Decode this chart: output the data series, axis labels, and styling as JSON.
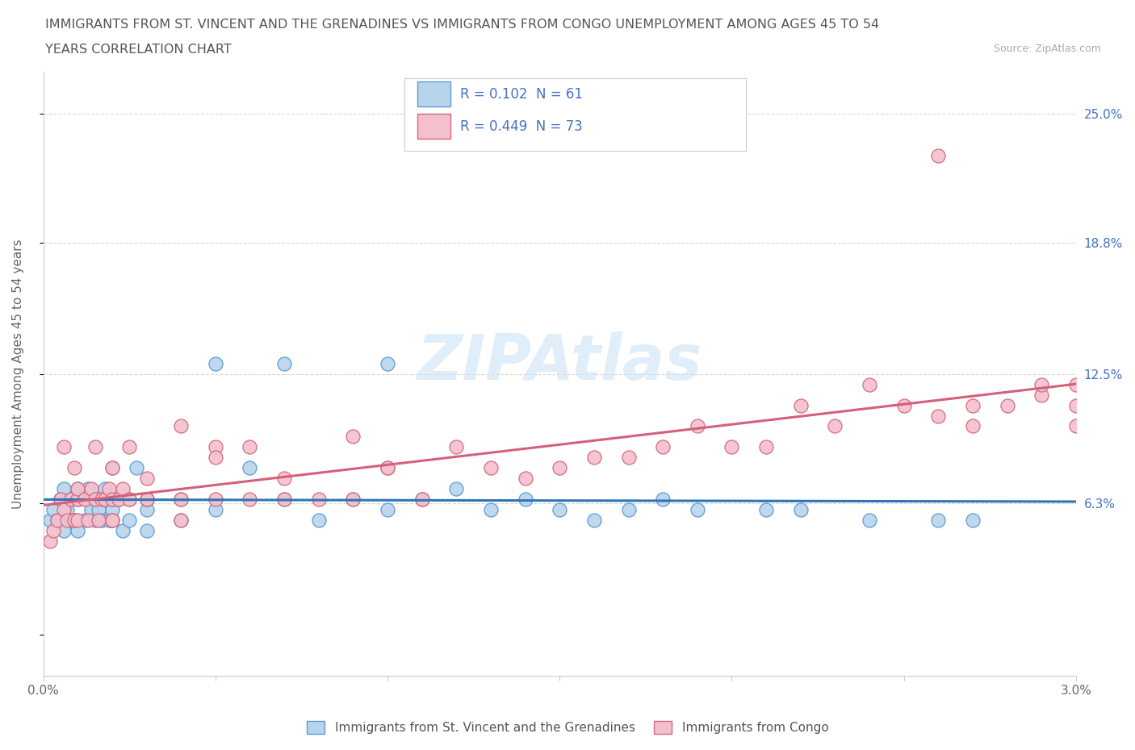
{
  "title_line1": "IMMIGRANTS FROM ST. VINCENT AND THE GRENADINES VS IMMIGRANTS FROM CONGO UNEMPLOYMENT AMONG AGES 45 TO 54",
  "title_line2": "YEARS CORRELATION CHART",
  "source": "Source: ZipAtlas.com",
  "ylabel": "Unemployment Among Ages 45 to 54 years",
  "xlim": [
    0.0,
    0.03
  ],
  "ylim": [
    -0.02,
    0.27
  ],
  "xticks": [
    0.0,
    0.005,
    0.01,
    0.015,
    0.02,
    0.025,
    0.03
  ],
  "xticklabels": [
    "0.0%",
    "",
    "",
    "",
    "",
    "",
    "3.0%"
  ],
  "ytick_positions": [
    0.0,
    0.063,
    0.125,
    0.188,
    0.25
  ],
  "ytick_labels": [
    "",
    "6.3%",
    "12.5%",
    "18.8%",
    "25.0%"
  ],
  "series1_label": "Immigrants from St. Vincent and the Grenadines",
  "series1_color": "#b8d4eb",
  "series1_edge_color": "#5b9bd5",
  "series1_R": "0.102",
  "series1_N": "61",
  "series2_label": "Immigrants from Congo",
  "series2_color": "#f4c0ce",
  "series2_edge_color": "#d4697e",
  "series2_R": "0.449",
  "series2_N": "73",
  "trend1_color": "#2e75b6",
  "trend2_color": "#d4607a",
  "legend_text_color": "#4472c4",
  "watermark": "ZIPAtlas",
  "background_color": "#ffffff",
  "grid_color": "#d8d8d8",
  "series1_x": [
    0.0002,
    0.0003,
    0.0004,
    0.0005,
    0.0006,
    0.0006,
    0.0007,
    0.0008,
    0.0008,
    0.0009,
    0.001,
    0.001,
    0.001,
    0.0012,
    0.0013,
    0.0013,
    0.0014,
    0.0015,
    0.0015,
    0.0016,
    0.0017,
    0.0018,
    0.0018,
    0.0019,
    0.002,
    0.002,
    0.002,
    0.002,
    0.0022,
    0.0023,
    0.0025,
    0.0025,
    0.0027,
    0.003,
    0.003,
    0.003,
    0.004,
    0.004,
    0.005,
    0.005,
    0.006,
    0.007,
    0.007,
    0.008,
    0.009,
    0.01,
    0.01,
    0.011,
    0.012,
    0.013,
    0.014,
    0.015,
    0.016,
    0.017,
    0.018,
    0.019,
    0.021,
    0.022,
    0.024,
    0.026,
    0.027
  ],
  "series1_y": [
    0.055,
    0.06,
    0.055,
    0.065,
    0.07,
    0.05,
    0.06,
    0.065,
    0.055,
    0.055,
    0.065,
    0.07,
    0.05,
    0.055,
    0.065,
    0.07,
    0.06,
    0.065,
    0.055,
    0.06,
    0.055,
    0.065,
    0.07,
    0.055,
    0.06,
    0.065,
    0.055,
    0.08,
    0.065,
    0.05,
    0.055,
    0.065,
    0.08,
    0.05,
    0.06,
    0.065,
    0.055,
    0.065,
    0.06,
    0.13,
    0.08,
    0.065,
    0.13,
    0.055,
    0.065,
    0.06,
    0.13,
    0.065,
    0.07,
    0.06,
    0.065,
    0.06,
    0.055,
    0.06,
    0.065,
    0.06,
    0.06,
    0.06,
    0.055,
    0.055,
    0.055
  ],
  "series2_x": [
    0.0002,
    0.0003,
    0.0004,
    0.0005,
    0.0006,
    0.0006,
    0.0007,
    0.0008,
    0.0009,
    0.0009,
    0.001,
    0.001,
    0.001,
    0.0012,
    0.0013,
    0.0014,
    0.0015,
    0.0015,
    0.0016,
    0.0017,
    0.0018,
    0.0019,
    0.002,
    0.002,
    0.002,
    0.002,
    0.0022,
    0.0023,
    0.0025,
    0.0025,
    0.003,
    0.003,
    0.003,
    0.004,
    0.004,
    0.004,
    0.005,
    0.005,
    0.005,
    0.006,
    0.006,
    0.007,
    0.007,
    0.008,
    0.009,
    0.009,
    0.01,
    0.01,
    0.011,
    0.012,
    0.013,
    0.014,
    0.015,
    0.016,
    0.017,
    0.018,
    0.019,
    0.02,
    0.021,
    0.022,
    0.023,
    0.024,
    0.025,
    0.026,
    0.027,
    0.027,
    0.028,
    0.029,
    0.029,
    0.03,
    0.03,
    0.03,
    0.026
  ],
  "series2_y": [
    0.045,
    0.05,
    0.055,
    0.065,
    0.06,
    0.09,
    0.055,
    0.065,
    0.055,
    0.08,
    0.065,
    0.055,
    0.07,
    0.065,
    0.055,
    0.07,
    0.065,
    0.09,
    0.055,
    0.065,
    0.065,
    0.07,
    0.055,
    0.065,
    0.055,
    0.08,
    0.065,
    0.07,
    0.065,
    0.09,
    0.065,
    0.075,
    0.065,
    0.055,
    0.065,
    0.1,
    0.09,
    0.065,
    0.085,
    0.065,
    0.09,
    0.065,
    0.075,
    0.065,
    0.095,
    0.065,
    0.08,
    0.08,
    0.065,
    0.09,
    0.08,
    0.075,
    0.08,
    0.085,
    0.085,
    0.09,
    0.1,
    0.09,
    0.09,
    0.11,
    0.1,
    0.12,
    0.11,
    0.23,
    0.1,
    0.11,
    0.11,
    0.115,
    0.12,
    0.1,
    0.11,
    0.12,
    0.105
  ]
}
